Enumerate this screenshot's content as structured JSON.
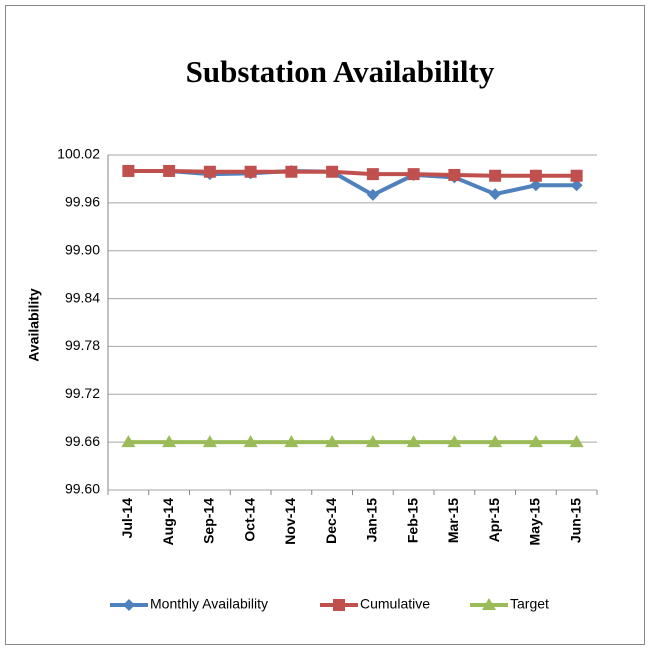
{
  "chart_data": {
    "type": "line",
    "title": "Substation Availabililty",
    "y_label": "Availability",
    "categories": [
      "Jul-14",
      "Aug-14",
      "Sep-14",
      "Oct-14",
      "Nov-14",
      "Dec-14",
      "Jan-15",
      "Feb-15",
      "Mar-15",
      "Apr-15",
      "May-15",
      "Jun-15"
    ],
    "series": [
      {
        "name": "Monthly Availability",
        "color": "#4f81bd",
        "marker": "diamond",
        "values": [
          100.0,
          100.0,
          99.996,
          99.997,
          100.0,
          99.999,
          99.97,
          99.995,
          99.992,
          99.971,
          99.982,
          99.982
        ]
      },
      {
        "name": "Cumulative",
        "color": "#c0504d",
        "marker": "square",
        "values": [
          100.0,
          100.0,
          99.999,
          99.999,
          99.999,
          99.999,
          99.996,
          99.996,
          99.995,
          99.994,
          99.994,
          99.994
        ]
      },
      {
        "name": "Target",
        "color": "#9bbb59",
        "marker": "triangle",
        "values": [
          99.66,
          99.66,
          99.66,
          99.66,
          99.66,
          99.66,
          99.66,
          99.66,
          99.66,
          99.66,
          99.66,
          99.66
        ]
      }
    ],
    "ylim": [
      99.6,
      100.02
    ],
    "yticks": [
      {
        "value": 99.6,
        "label": "99.60"
      },
      99.66,
      99.72,
      99.78,
      99.84,
      {
        "value": 99.9,
        "label": "99.90"
      },
      99.96,
      100.02
    ],
    "grid": true,
    "legend": "bottom"
  }
}
